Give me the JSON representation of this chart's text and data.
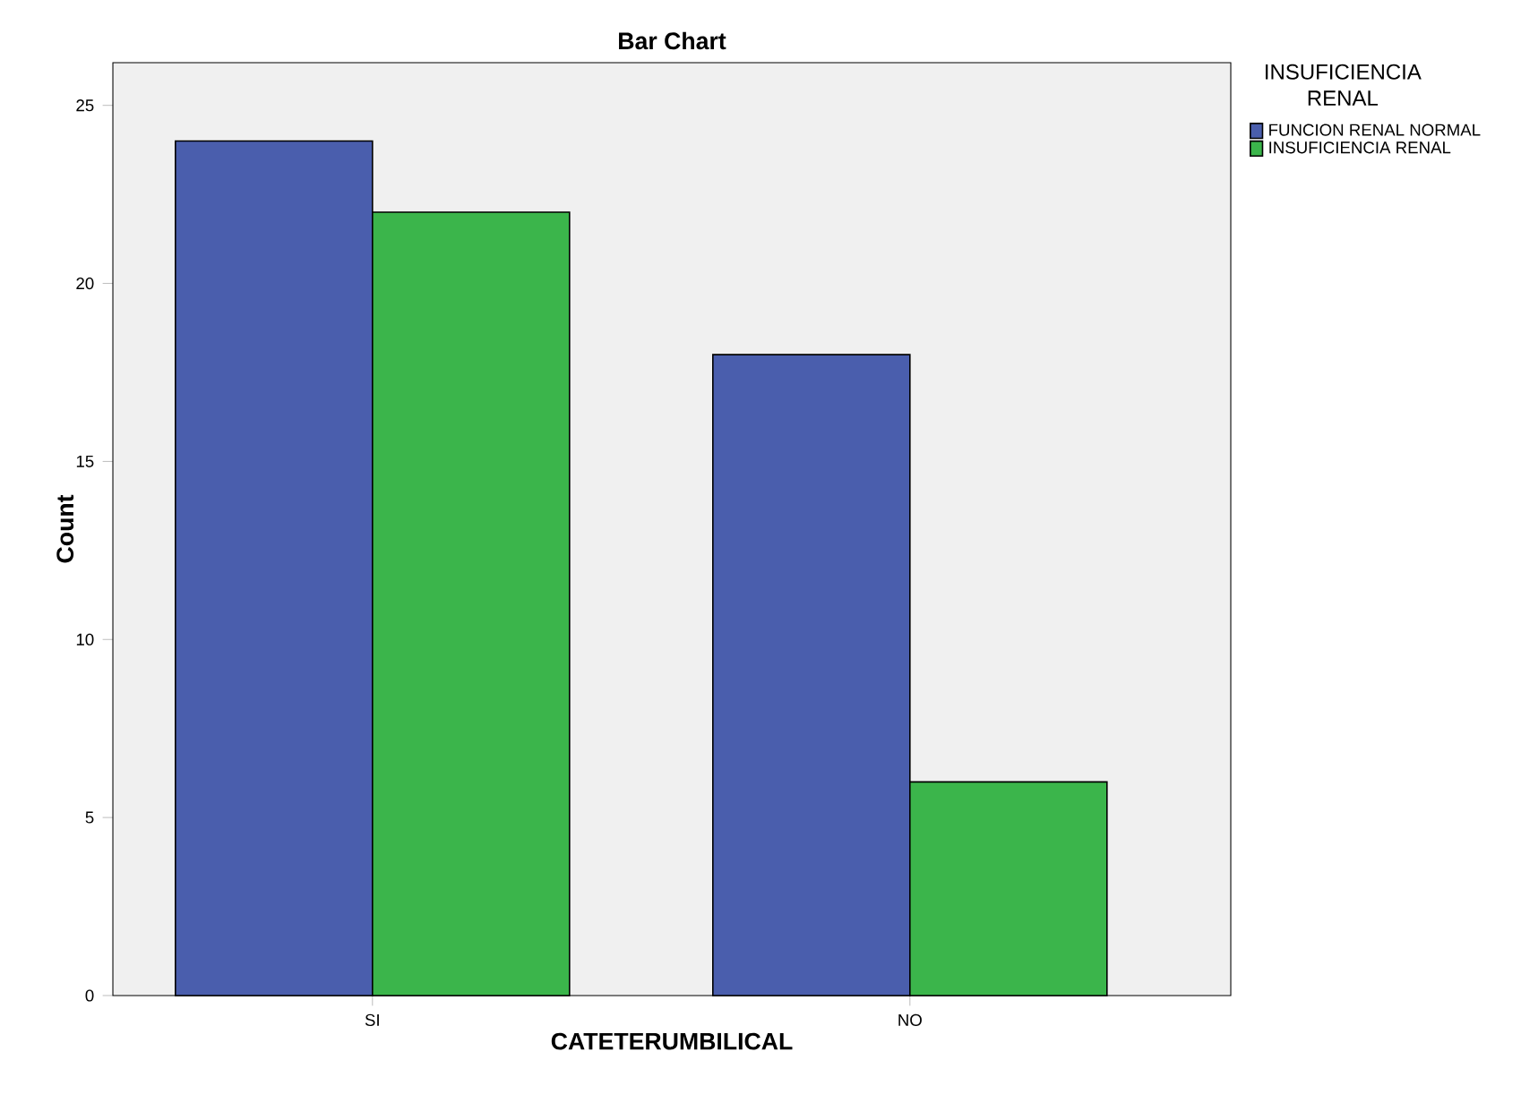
{
  "chart_data": {
    "type": "bar",
    "title": "Bar Chart",
    "xlabel": "CATETERUMBILICAL",
    "ylabel": "Count",
    "legend_title": "INSUFICIENCIA RENAL",
    "categories": [
      "SI",
      "NO"
    ],
    "series": [
      {
        "name": "FUNCION RENAL NORMAL",
        "color": "#4a5ead",
        "values": [
          24,
          18
        ]
      },
      {
        "name": "INSUFICIENCIA RENAL",
        "color": "#3bb54b",
        "values": [
          22,
          6
        ]
      }
    ],
    "ylim": [
      0,
      26.2
    ],
    "yticks": [
      0,
      5,
      10,
      15,
      20,
      25
    ],
    "grid": false,
    "legend": "right"
  }
}
